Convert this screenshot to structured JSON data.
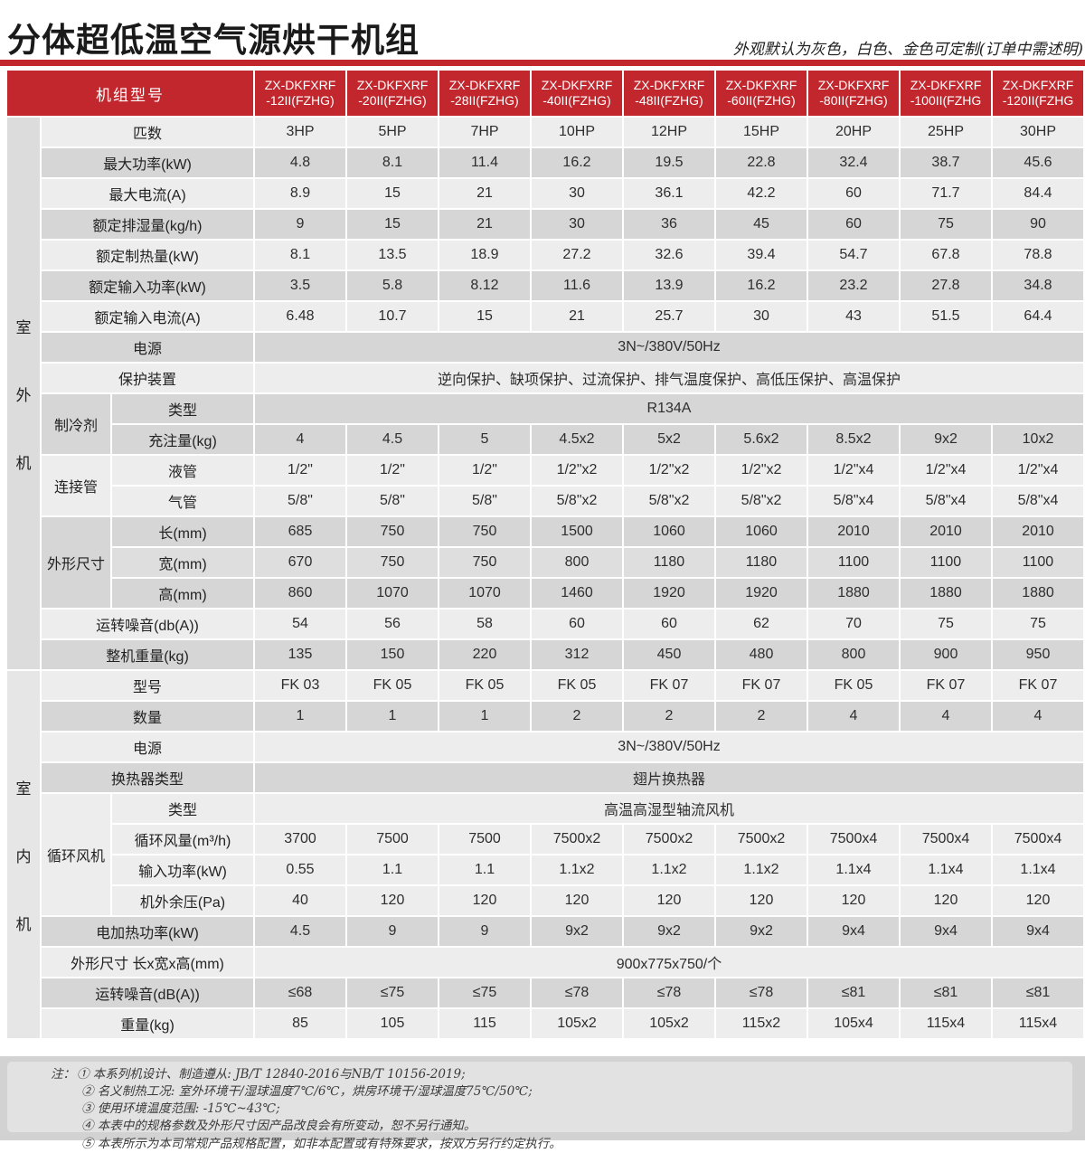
{
  "page": {
    "title": "分体超低温空气源烘干机组",
    "subtitle": "外观默认为灰色，白色、金色可定制(订单中需述明)"
  },
  "colors": {
    "red": "#c3272e",
    "gray": "#d6d6d6",
    "mid": "#dedede",
    "light": "#ededed",
    "side_outdoor": "#dcdcdc",
    "side_indoor": "#e6e6e6",
    "footer_bg": "#d2d2d2",
    "footer_panel": "#e2e2e2"
  },
  "table": {
    "header_label": "机组型号",
    "models": [
      {
        "l1": "ZX-DKFXRF",
        "l2": "-12II(FZHG)"
      },
      {
        "l1": "ZX-DKFXRF",
        "l2": "-20II(FZHG)"
      },
      {
        "l1": "ZX-DKFXRF",
        "l2": "-28II(FZHG)"
      },
      {
        "l1": "ZX-DKFXRF",
        "l2": "-40II(FZHG)"
      },
      {
        "l1": "ZX-DKFXRF",
        "l2": "-48II(FZHG)"
      },
      {
        "l1": "ZX-DKFXRF",
        "l2": "-60II(FZHG)"
      },
      {
        "l1": "ZX-DKFXRF",
        "l2": "-80II(FZHG)"
      },
      {
        "l1": "ZX-DKFXRF",
        "l2": "-100II(FZHG"
      },
      {
        "l1": "ZX-DKFXRF",
        "l2": "-120II(FZHG"
      }
    ],
    "sections": [
      {
        "side": [
          "室",
          "外",
          "机"
        ],
        "side_style": "A",
        "rows": [
          {
            "label": "匹数",
            "shade": "L",
            "values": [
              "3HP",
              "5HP",
              "7HP",
              "10HP",
              "12HP",
              "15HP",
              "20HP",
              "25HP",
              "30HP"
            ]
          },
          {
            "label": "最大功率(kW)",
            "shade": "G",
            "values": [
              "4.8",
              "8.1",
              "11.4",
              "16.2",
              "19.5",
              "22.8",
              "32.4",
              "38.7",
              "45.6"
            ]
          },
          {
            "label": "最大电流(A)",
            "shade": "L",
            "values": [
              "8.9",
              "15",
              "21",
              "30",
              "36.1",
              "42.2",
              "60",
              "71.7",
              "84.4"
            ]
          },
          {
            "label": "额定排湿量(kg/h)",
            "shade": "G",
            "values": [
              "9",
              "15",
              "21",
              "30",
              "36",
              "45",
              "60",
              "75",
              "90"
            ]
          },
          {
            "label": "额定制热量(kW)",
            "shade": "L",
            "values": [
              "8.1",
              "13.5",
              "18.9",
              "27.2",
              "32.6",
              "39.4",
              "54.7",
              "67.8",
              "78.8"
            ]
          },
          {
            "label": "额定输入功率(kW)",
            "shade": "G",
            "values": [
              "3.5",
              "5.8",
              "8.12",
              "11.6",
              "13.9",
              "16.2",
              "23.2",
              "27.8",
              "34.8"
            ]
          },
          {
            "label": "额定输入电流(A)",
            "shade": "L",
            "values": [
              "6.48",
              "10.7",
              "15",
              "21",
              "25.7",
              "30",
              "43",
              "51.5",
              "64.4"
            ]
          },
          {
            "label": "电源",
            "shade": "G",
            "span": "3N~/380V/50Hz"
          },
          {
            "label": "保护装置",
            "shade": "L",
            "span": "逆向保护、缺项保护、过流保护、排气温度保护、高低压保护、高温保护"
          },
          {
            "group": "制冷剂",
            "grows": 2,
            "gshade": "G",
            "sub": "类型",
            "shade": "G",
            "span": "R134A"
          },
          {
            "sub": "充注量(kg)",
            "shade": "G",
            "values": [
              "4",
              "4.5",
              "5",
              "4.5x2",
              "5x2",
              "5.6x2",
              "8.5x2",
              "9x2",
              "10x2"
            ]
          },
          {
            "group": "连接管",
            "grows": 2,
            "gshade": "L",
            "sub": "液管",
            "shade": "L",
            "values": [
              "1/2\"",
              "1/2\"",
              "1/2\"",
              "1/2\"x2",
              "1/2\"x2",
              "1/2\"x2",
              "1/2\"x4",
              "1/2\"x4",
              "1/2\"x4"
            ]
          },
          {
            "sub": "气管",
            "shade": "L",
            "values": [
              "5/8\"",
              "5/8\"",
              "5/8\"",
              "5/8\"x2",
              "5/8\"x2",
              "5/8\"x2",
              "5/8\"x4",
              "5/8\"x4",
              "5/8\"x4"
            ]
          },
          {
            "group": "外形尺寸",
            "grows": 3,
            "gshade": "G",
            "sub": "长(mm)",
            "shade": "G",
            "values": [
              "685",
              "750",
              "750",
              "1500",
              "1060",
              "1060",
              "2010",
              "2010",
              "2010"
            ]
          },
          {
            "sub": "宽(mm)",
            "shade": "M",
            "values": [
              "670",
              "750",
              "750",
              "800",
              "1180",
              "1180",
              "1100",
              "1100",
              "1100"
            ]
          },
          {
            "sub": "高(mm)",
            "shade": "G",
            "values": [
              "860",
              "1070",
              "1070",
              "1460",
              "1920",
              "1920",
              "1880",
              "1880",
              "1880"
            ]
          },
          {
            "label": "运转噪音(db(A))",
            "shade": "L",
            "values": [
              "54",
              "56",
              "58",
              "60",
              "60",
              "62",
              "70",
              "75",
              "75"
            ]
          },
          {
            "label": "整机重量(kg)",
            "shade": "G",
            "values": [
              "135",
              "150",
              "220",
              "312",
              "450",
              "480",
              "800",
              "900",
              "950"
            ]
          }
        ]
      },
      {
        "side": [
          "室",
          "内",
          "机"
        ],
        "side_style": "B",
        "rows": [
          {
            "label": "型号",
            "shade": "L",
            "values": [
              "FK 03",
              "FK 05",
              "FK 05",
              "FK 05",
              "FK 07",
              "FK 07",
              "FK 05",
              "FK 07",
              "FK 07"
            ]
          },
          {
            "label": "数量",
            "shade": "G",
            "values": [
              "1",
              "1",
              "1",
              "2",
              "2",
              "2",
              "4",
              "4",
              "4"
            ]
          },
          {
            "label": "电源",
            "shade": "L",
            "span": "3N~/380V/50Hz"
          },
          {
            "label": "换热器类型",
            "shade": "G",
            "span": "翅片换热器"
          },
          {
            "group": "循环风机",
            "grows": 4,
            "gshade": "L",
            "sub": "类型",
            "shade": "L",
            "span": "高温高湿型轴流风机"
          },
          {
            "sub": "循环风量(m³/h)",
            "shade": "L",
            "values": [
              "3700",
              "7500",
              "7500",
              "7500x2",
              "7500x2",
              "7500x2",
              "7500x4",
              "7500x4",
              "7500x4"
            ]
          },
          {
            "sub": "输入功率(kW)",
            "shade": "L",
            "values": [
              "0.55",
              "1.1",
              "1.1",
              "1.1x2",
              "1.1x2",
              "1.1x2",
              "1.1x4",
              "1.1x4",
              "1.1x4"
            ]
          },
          {
            "sub": "机外余压(Pa)",
            "shade": "L",
            "values": [
              "40",
              "120",
              "120",
              "120",
              "120",
              "120",
              "120",
              "120",
              "120"
            ]
          },
          {
            "label": "电加热功率(kW)",
            "shade": "G",
            "values": [
              "4.5",
              "9",
              "9",
              "9x2",
              "9x2",
              "9x2",
              "9x4",
              "9x4",
              "9x4"
            ]
          },
          {
            "label": "外形尺寸 长x宽x高(mm)",
            "shade": "L",
            "span": "900x775x750/个"
          },
          {
            "label": "运转噪音(dB(A))",
            "shade": "G",
            "values": [
              "≤68",
              "≤75",
              "≤75",
              "≤78",
              "≤78",
              "≤78",
              "≤81",
              "≤81",
              "≤81"
            ]
          },
          {
            "label": "重量(kg)",
            "shade": "L",
            "values": [
              "85",
              "105",
              "115",
              "105x2",
              "105x2",
              "115x2",
              "105x4",
              "115x4",
              "115x4"
            ]
          }
        ]
      }
    ]
  },
  "notes": {
    "prefix": "注：",
    "items": [
      "① 本系列机设计、制造遵从: JB/T 12840-2016与NB/T 10156-2019;",
      "② 名义制热工况: 室外环境干/湿球温度7℃/6℃，烘房环境干/湿球温度75℃/50℃;",
      "③ 使用环境温度范围: -15℃~43℃;",
      "④ 本表中的规格参数及外形尺寸因产品改良会有所变动，恕不另行通知。",
      "⑤ 本表所示为本司常规产品规格配置，如非本配置或有特殊要求，按双方另行约定执行。"
    ]
  }
}
